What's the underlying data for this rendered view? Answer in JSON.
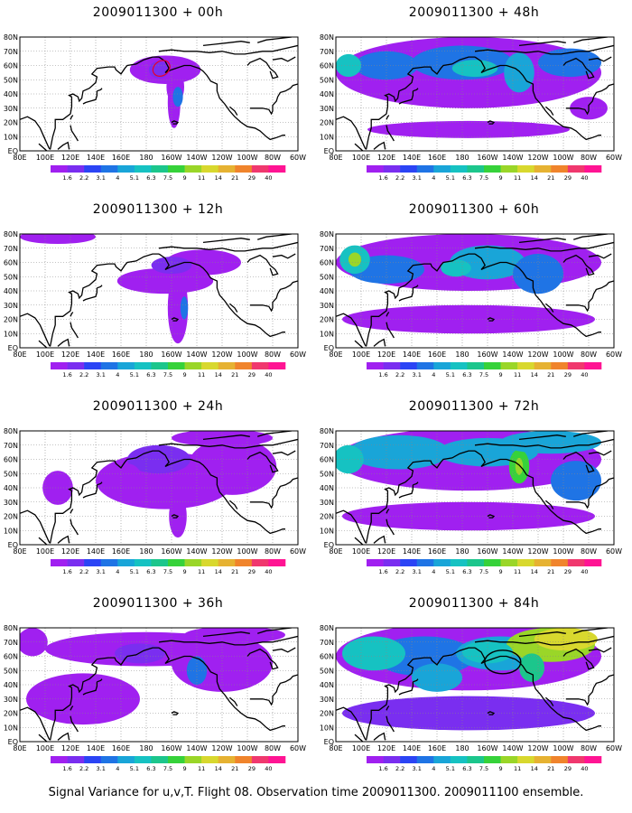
{
  "footer": "Signal Variance for u,v,T. Flight 08. Observation time 2009011300. 2009011100 ensemble.",
  "legend": {
    "levels": [
      "1.6",
      "2.2",
      "3.1",
      "4",
      "5.1",
      "6.3",
      "7.5",
      "9",
      "11",
      "14",
      "21",
      "29",
      "40"
    ],
    "colors": [
      "#a020f0",
      "#7a2ef0",
      "#2b44f5",
      "#1f74e5",
      "#19a5d8",
      "#16c2c2",
      "#1cc68c",
      "#36d23a",
      "#9ad628",
      "#d8d82e",
      "#e6b232",
      "#f0842c",
      "#f0386e",
      "#ff1493"
    ]
  },
  "axes": {
    "lon_ticks": [
      "80E",
      "100E",
      "120E",
      "140E",
      "160E",
      "180",
      "160W",
      "140W",
      "120W",
      "100W",
      "80W",
      "60W"
    ],
    "lat_ticks": [
      "EQ",
      "10N",
      "20N",
      "30N",
      "40N",
      "50N",
      "60N",
      "70N",
      "80N"
    ]
  },
  "chart_data": [
    {
      "type": "heatmap",
      "title": "2009011300 + 00h"
    },
    {
      "type": "heatmap",
      "title": "2009011300 + 12h"
    },
    {
      "type": "heatmap",
      "title": "2009011300 + 24h"
    },
    {
      "type": "heatmap",
      "title": "2009011300 + 36h"
    },
    {
      "type": "heatmap",
      "title": "2009011300 + 48h"
    },
    {
      "type": "heatmap",
      "title": "2009011300 + 60h"
    },
    {
      "type": "heatmap",
      "title": "2009011300 + 72h"
    },
    {
      "type": "heatmap",
      "title": "2009011300 + 84h"
    }
  ]
}
